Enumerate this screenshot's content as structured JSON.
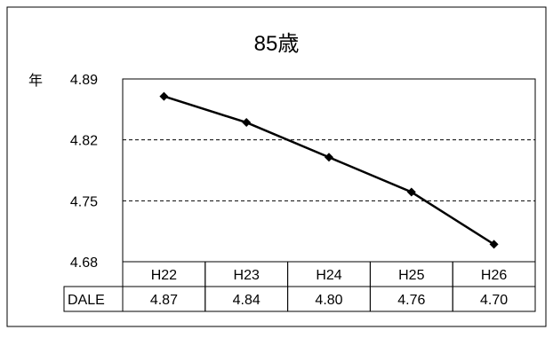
{
  "chart_data": {
    "type": "line",
    "title": "85歳",
    "ylabel": "年",
    "ylim": [
      4.68,
      4.89
    ],
    "yticks": [
      "4.89",
      "4.82",
      "4.75",
      "4.68"
    ],
    "grid": true,
    "categories": [
      "H22",
      "H23",
      "H24",
      "H25",
      "H26"
    ],
    "series": [
      {
        "name": "DALE",
        "values": [
          4.87,
          4.84,
          4.8,
          4.76,
          4.7
        ]
      }
    ],
    "table": {
      "row_label": "DALE",
      "cells": [
        "4.87",
        "4.84",
        "4.80",
        "4.76",
        "4.70"
      ]
    },
    "colors": {
      "line": "#000000",
      "marker": "#000000",
      "grid": "#000000"
    }
  }
}
